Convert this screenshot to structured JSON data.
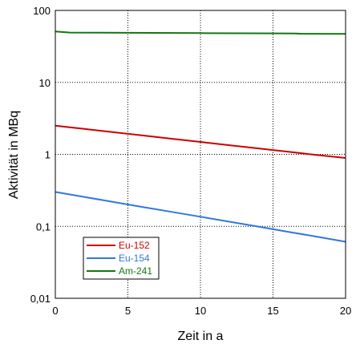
{
  "chart_data": {
    "type": "line",
    "title": "",
    "xlabel": "Zeit in a",
    "ylabel": "Aktivität in MBq",
    "xlim": [
      0,
      20
    ],
    "ylim": [
      0.01,
      100
    ],
    "y_scale": "log",
    "grid": true,
    "legend_position": "bottom-left",
    "x_ticks": [
      0,
      5,
      10,
      15,
      20
    ],
    "x_tick_labels": [
      "0",
      "5",
      "10",
      "15",
      "20"
    ],
    "y_ticks": [
      0.01,
      0.1,
      1,
      10,
      100
    ],
    "y_tick_labels": [
      "0,01",
      "0,1",
      "1",
      "10",
      "100"
    ],
    "series": [
      {
        "name": "Eu-152",
        "color": "#cc0000",
        "x": [
          0,
          2,
          4,
          6,
          8,
          10,
          12,
          14,
          16,
          18,
          20
        ],
        "y": [
          2.5,
          2.26,
          2.03,
          1.83,
          1.65,
          1.49,
          1.34,
          1.21,
          1.09,
          0.98,
          0.89
        ]
      },
      {
        "name": "Eu-154",
        "color": "#3377dd",
        "x": [
          0,
          2,
          4,
          6,
          8,
          10,
          12,
          14,
          16,
          18,
          20
        ],
        "y": [
          0.3,
          0.256,
          0.218,
          0.186,
          0.159,
          0.136,
          0.116,
          0.099,
          0.084,
          0.072,
          0.061
        ]
      },
      {
        "name": "Am-241",
        "color": "#117711",
        "x": [
          0,
          1,
          5,
          10,
          15,
          16.5,
          17,
          20
        ],
        "y": [
          51,
          49.2,
          48.9,
          48.4,
          48,
          47.8,
          47.4,
          47.1
        ]
      }
    ]
  }
}
